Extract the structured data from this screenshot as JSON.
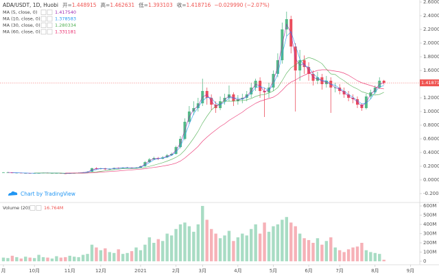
{
  "chart_data": {
    "type": "candlestick",
    "symbol": "ADA/USDT, 1D, Huobi",
    "header": [
      {
        "label": "开=",
        "value": 1.448915
      },
      {
        "label": "高=",
        "value": 1.462631
      },
      {
        "label": "低=",
        "value": 1.393103
      },
      {
        "label": "收=",
        "value": 1.418716
      }
    ],
    "change": "−0.029990 (−2.07%)",
    "watermark": "Chart by TradingView",
    "up_color": "#53b987",
    "down_color": "#eb4d5c",
    "last_color": "#ef5350",
    "categories": [
      "月",
      null,
      null,
      null,
      null,
      null,
      null,
      "10月",
      null,
      null,
      null,
      null,
      null,
      null,
      null,
      "11月",
      null,
      null,
      null,
      null,
      null,
      null,
      "12月",
      null,
      null,
      null,
      null,
      null,
      null,
      null,
      null,
      "2021",
      null,
      null,
      null,
      null,
      null,
      null,
      null,
      "2月",
      null,
      null,
      null,
      null,
      null,
      "3月",
      null,
      null,
      null,
      null,
      null,
      null,
      null,
      "4月",
      null,
      null,
      null,
      null,
      null,
      null,
      null,
      "5月",
      null,
      null,
      null,
      null,
      null,
      null,
      null,
      "6月",
      null,
      null,
      null,
      null,
      null,
      null,
      "7月",
      null,
      null,
      null,
      null,
      null,
      null,
      null,
      "8月",
      null,
      null,
      null,
      null,
      null,
      null,
      null,
      "9月"
    ],
    "open": [
      0.11,
      0.11,
      0.11,
      0.1,
      0.105,
      0.1,
      0.1,
      0.095,
      0.1,
      0.1,
      0.105,
      0.1,
      0.1,
      0.1,
      0.095,
      0.09,
      0.1,
      0.1,
      0.105,
      0.11,
      0.12,
      0.17,
      0.16,
      0.17,
      0.155,
      0.16,
      0.175,
      0.17,
      0.18,
      0.18,
      0.17,
      0.18,
      0.2,
      0.26,
      0.3,
      0.32,
      0.31,
      0.33,
      0.36,
      0.38,
      0.48,
      0.6,
      0.85,
      1.0,
      1.05,
      1.12,
      1.3,
      1.2,
      1.1,
      1.05,
      1.15,
      1.2,
      1.25,
      1.15,
      1.18,
      1.2,
      1.25,
      1.35,
      1.45,
      1.3,
      1.28,
      1.35,
      1.55,
      1.75,
      2.2,
      2.35,
      1.95,
      1.6,
      1.75,
      1.65,
      1.55,
      1.45,
      1.5,
      1.4,
      1.45,
      1.35,
      1.35,
      1.3,
      1.25,
      1.2,
      1.18,
      1.1,
      1.05,
      1.22,
      1.28,
      1.35,
      1.45,
      null,
      null,
      null,
      null,
      null,
      null
    ],
    "high": [
      0.115,
      0.118,
      0.112,
      0.108,
      0.108,
      0.104,
      0.102,
      0.103,
      0.104,
      0.108,
      0.108,
      0.104,
      0.104,
      0.102,
      0.098,
      0.103,
      0.105,
      0.109,
      0.115,
      0.126,
      0.18,
      0.185,
      0.178,
      0.175,
      0.168,
      0.18,
      0.182,
      0.188,
      0.19,
      0.185,
      0.188,
      0.21,
      0.275,
      0.32,
      0.34,
      0.335,
      0.35,
      0.38,
      0.4,
      0.5,
      0.64,
      0.9,
      1.08,
      1.15,
      1.2,
      1.48,
      1.35,
      1.25,
      1.15,
      1.22,
      1.26,
      1.38,
      1.28,
      1.24,
      1.26,
      1.3,
      1.42,
      1.48,
      1.5,
      1.35,
      1.42,
      1.6,
      1.85,
      2.3,
      2.46,
      2.4,
      2.0,
      1.9,
      1.82,
      1.72,
      1.6,
      1.58,
      1.55,
      1.52,
      1.5,
      1.42,
      1.4,
      1.35,
      1.3,
      1.25,
      1.22,
      1.12,
      1.26,
      1.32,
      1.38,
      1.5,
      1.462631,
      null,
      null,
      null,
      null,
      null,
      null
    ],
    "low": [
      0.105,
      0.104,
      0.097,
      0.097,
      0.096,
      0.096,
      0.092,
      0.092,
      0.096,
      0.097,
      0.097,
      0.096,
      0.095,
      0.092,
      0.087,
      0.088,
      0.096,
      0.098,
      0.102,
      0.108,
      0.118,
      0.15,
      0.152,
      0.145,
      0.148,
      0.155,
      0.162,
      0.165,
      0.17,
      0.163,
      0.165,
      0.175,
      0.195,
      0.25,
      0.29,
      0.29,
      0.3,
      0.32,
      0.35,
      0.37,
      0.46,
      0.58,
      0.82,
      0.95,
      1.0,
      1.08,
      1.1,
      1.02,
      0.98,
      1.02,
      1.1,
      1.15,
      1.08,
      1.1,
      1.12,
      1.15,
      1.2,
      1.3,
      1.2,
      0.92,
      1.2,
      1.3,
      1.5,
      1.7,
      2.1,
      1.85,
      1.0,
      1.45,
      1.55,
      1.45,
      1.38,
      1.4,
      1.32,
      1.35,
      0.98,
      1.28,
      1.25,
      1.2,
      1.15,
      1.12,
      1.05,
      1.01,
      1.03,
      1.18,
      1.25,
      1.33,
      1.393103,
      null,
      null,
      null,
      null,
      null,
      null
    ],
    "close": [
      0.11,
      0.11,
      0.1,
      0.105,
      0.1,
      0.1,
      0.095,
      0.1,
      0.1,
      0.105,
      0.1,
      0.1,
      0.1,
      0.095,
      0.09,
      0.1,
      0.1,
      0.105,
      0.11,
      0.12,
      0.17,
      0.16,
      0.17,
      0.155,
      0.16,
      0.175,
      0.17,
      0.18,
      0.18,
      0.17,
      0.18,
      0.2,
      0.26,
      0.3,
      0.32,
      0.31,
      0.33,
      0.36,
      0.38,
      0.48,
      0.6,
      0.85,
      1.0,
      1.05,
      1.12,
      1.3,
      1.2,
      1.1,
      1.05,
      1.15,
      1.2,
      1.25,
      1.15,
      1.18,
      1.2,
      1.25,
      1.35,
      1.45,
      1.3,
      1.28,
      1.35,
      1.55,
      1.75,
      2.2,
      2.35,
      1.95,
      1.6,
      1.75,
      1.65,
      1.55,
      1.45,
      1.5,
      1.4,
      1.45,
      1.35,
      1.35,
      1.3,
      1.25,
      1.2,
      1.18,
      1.1,
      1.05,
      1.22,
      1.28,
      1.35,
      1.45,
      1.418716,
      null,
      null,
      null,
      null,
      null,
      null
    ],
    "ylim": [
      -0.32,
      2.63
    ],
    "yticks": [
      {
        "value": 2.6,
        "label": "2.600000"
      },
      {
        "value": 2.4,
        "label": "2.400000"
      },
      {
        "value": 2.2,
        "label": "2.200000"
      },
      {
        "value": 2.0,
        "label": "2.000000"
      },
      {
        "value": 1.8,
        "label": "1.800000"
      },
      {
        "value": 1.6,
        "label": "1.600000"
      },
      {
        "value": 1.2,
        "label": "1.200000"
      },
      {
        "value": 1.0,
        "label": "1.000000"
      },
      {
        "value": 0.8,
        "label": "0.800000"
      },
      {
        "value": 0.6,
        "label": "0.600000"
      },
      {
        "value": 0.4,
        "label": "0.400000"
      },
      {
        "value": 0.2,
        "label": "0.200000"
      },
      {
        "value": 0,
        "label": "0.000000"
      },
      {
        "value": -0.2,
        "label": "-0.200000"
      }
    ],
    "ma": [
      {
        "name": "MA (5, close, 0)",
        "color": "#9c27b0",
        "last_label": "1.417540",
        "values": [
          null,
          0.11,
          0.105,
          0.103,
          0.103,
          0.1,
          0.098,
          0.098,
          0.1,
          0.103,
          0.103,
          0.1,
          0.1,
          0.098,
          0.093,
          0.095,
          0.1,
          0.103,
          0.108,
          0.115,
          0.145,
          0.165,
          0.165,
          0.163,
          0.158,
          0.168,
          0.173,
          0.175,
          0.18,
          0.175,
          0.175,
          0.19,
          0.23,
          0.28,
          0.31,
          0.315,
          0.32,
          0.345,
          0.37,
          0.43,
          0.54,
          0.725,
          0.925,
          1.025,
          1.085,
          1.21,
          1.25,
          1.15,
          1.075,
          1.1,
          1.175,
          1.225,
          1.2,
          1.165,
          1.19,
          1.225,
          1.3,
          1.4,
          1.375,
          1.29,
          1.315,
          1.45,
          1.65,
          1.975,
          2.275,
          2.15,
          1.775,
          1.675,
          1.7,
          1.6,
          1.5,
          1.475,
          1.45,
          1.425,
          1.4,
          1.35,
          1.325,
          1.275,
          1.225,
          1.19,
          1.14,
          1.075,
          1.135,
          1.25,
          1.315,
          1.4,
          1.41754,
          null,
          null,
          null,
          null,
          null,
          null
        ]
      },
      {
        "name": "MA (10, close, 0)",
        "color": "#2196f3",
        "last_label": "1.378583",
        "values": [
          null,
          null,
          0.107,
          0.105,
          0.102,
          0.102,
          0.098,
          0.098,
          0.098,
          0.102,
          0.102,
          0.102,
          0.1,
          0.098,
          0.095,
          0.095,
          0.097,
          0.102,
          0.105,
          0.112,
          0.133,
          0.15,
          0.167,
          0.162,
          0.162,
          0.163,
          0.168,
          0.175,
          0.177,
          0.177,
          0.177,
          0.183,
          0.213,
          0.253,
          0.293,
          0.31,
          0.32,
          0.333,
          0.357,
          0.407,
          0.487,
          0.643,
          0.817,
          0.967,
          1.057,
          1.157,
          1.207,
          1.2,
          1.117,
          1.1,
          1.133,
          1.2,
          1.2,
          1.193,
          1.177,
          1.21,
          1.267,
          1.35,
          1.367,
          1.343,
          1.31,
          1.393,
          1.55,
          1.833,
          2.1,
          2.167,
          1.967,
          1.767,
          1.667,
          1.65,
          1.55,
          1.5,
          1.45,
          1.45,
          1.4,
          1.383,
          1.333,
          1.3,
          1.25,
          1.21,
          1.16,
          1.11,
          1.123,
          1.183,
          1.283,
          1.36,
          1.378583,
          null,
          null,
          null,
          null,
          null,
          null
        ]
      },
      {
        "name": "MA (30, close, 0)",
        "color": "#4caf50",
        "last_label": "1.280334",
        "values": [
          null,
          null,
          null,
          null,
          null,
          null,
          null,
          0.102,
          0.101,
          0.101,
          0.1,
          0.1,
          0.1,
          0.1,
          0.098,
          0.098,
          0.098,
          0.099,
          0.1,
          0.102,
          0.11,
          0.117,
          0.126,
          0.133,
          0.141,
          0.149,
          0.157,
          0.165,
          0.167,
          0.167,
          0.17,
          0.172,
          0.183,
          0.198,
          0.216,
          0.233,
          0.252,
          0.275,
          0.3,
          0.33,
          0.37,
          0.435,
          0.52,
          0.61,
          0.71,
          0.83,
          0.93,
          1.02,
          1.08,
          1.12,
          1.15,
          1.15,
          1.15,
          1.16,
          1.16,
          1.17,
          1.19,
          1.22,
          1.24,
          1.25,
          1.27,
          1.3,
          1.35,
          1.45,
          1.56,
          1.64,
          1.68,
          1.73,
          1.76,
          1.79,
          1.77,
          1.74,
          1.7,
          1.62,
          1.55,
          1.54,
          1.49,
          1.45,
          1.4,
          1.36,
          1.33,
          1.29,
          1.27,
          1.25,
          1.24,
          1.25,
          1.280334,
          null,
          null,
          null,
          null,
          null,
          null
        ]
      },
      {
        "name": "MA (60, close, 0)",
        "color": "#e91e63",
        "last_label": "1.331181",
        "values": [
          null,
          null,
          null,
          null,
          null,
          null,
          null,
          null,
          null,
          null,
          null,
          null,
          null,
          null,
          0.1,
          0.1,
          0.1,
          0.1,
          0.1,
          0.101,
          0.106,
          0.109,
          0.114,
          0.118,
          0.122,
          0.127,
          0.131,
          0.137,
          0.142,
          0.147,
          0.152,
          0.157,
          0.164,
          0.173,
          0.183,
          0.191,
          0.202,
          0.214,
          0.227,
          0.246,
          0.275,
          0.32,
          0.375,
          0.43,
          0.49,
          0.565,
          0.625,
          0.68,
          0.73,
          0.78,
          0.82,
          0.87,
          0.91,
          0.95,
          0.99,
          1.04,
          1.08,
          1.12,
          1.15,
          1.17,
          1.19,
          1.21,
          1.25,
          1.31,
          1.38,
          1.43,
          1.46,
          1.5,
          1.53,
          1.56,
          1.58,
          1.6,
          1.61,
          1.61,
          1.6,
          1.59,
          1.58,
          1.56,
          1.53,
          1.49,
          1.45,
          1.42,
          1.4,
          1.38,
          1.36,
          1.34,
          1.331181,
          null,
          null,
          null,
          null,
          null,
          null
        ]
      }
    ],
    "volume": {
      "name": "Volume (20)",
      "last_label": "16.764M",
      "up_color": "#a8dcc4",
      "down_color": "#f6b1b7",
      "values": [
        40,
        35,
        60,
        45,
        30,
        50,
        40,
        35,
        70,
        45,
        40,
        30,
        55,
        40,
        45,
        60,
        50,
        45,
        70,
        80,
        180,
        150,
        120,
        140,
        100,
        90,
        130,
        80,
        90,
        110,
        150,
        120,
        180,
        260,
        200,
        240,
        220,
        300,
        280,
        350,
        400,
        420,
        380,
        320,
        400,
        600,
        450,
        350,
        300,
        250,
        280,
        330,
        220,
        260,
        300,
        280,
        350,
        400,
        300,
        420,
        320,
        380,
        400,
        450,
        480,
        420,
        380,
        300,
        250,
        230,
        200,
        250,
        180,
        220,
        260,
        150,
        120,
        100,
        130,
        150,
        160,
        200,
        120,
        100,
        90,
        80,
        16.764,
        null,
        null,
        null,
        null,
        null,
        null
      ],
      "ylim": [
        -30,
        630
      ],
      "yticks": [
        {
          "value": 600,
          "label": "600M"
        },
        {
          "value": 500,
          "label": "500M"
        },
        {
          "value": 400,
          "label": "400M"
        },
        {
          "value": 300,
          "label": "300M"
        },
        {
          "value": 200,
          "label": "200M"
        },
        {
          "value": 100,
          "label": "100M"
        },
        0
      ]
    }
  }
}
